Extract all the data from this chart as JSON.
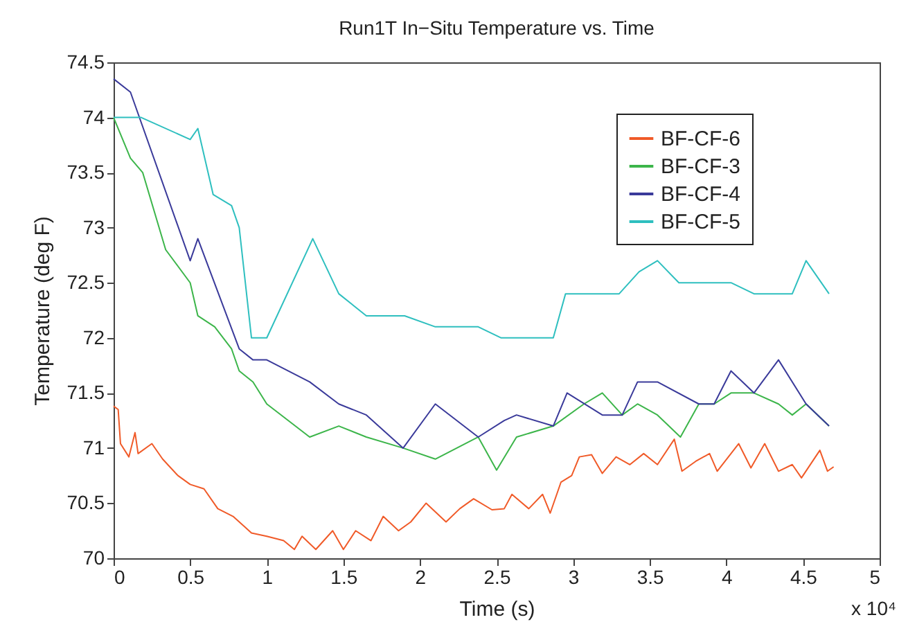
{
  "chart_data": {
    "type": "line",
    "title": "Run1T In−Situ Temperature vs. Time",
    "xlabel": "Time (s)",
    "ylabel": "Temperature (deg F)",
    "annotations": [
      "x 10⁴"
    ],
    "xlim": [
      0,
      5
    ],
    "xticks": [
      0,
      0.5,
      1,
      1.5,
      2,
      2.5,
      3,
      3.5,
      4,
      4.5,
      5
    ],
    "ylim": [
      70,
      74.5
    ],
    "yticks": [
      70,
      70.5,
      71,
      71.5,
      72,
      72.5,
      73,
      73.5,
      74,
      74.5
    ],
    "grid": false,
    "legend": "top right",
    "marker": "none",
    "line_style": "solid",
    "series": [
      {
        "name": "BF-CF-6",
        "color": "#f05a28",
        "x": [
          0,
          0.03,
          0.045,
          0.1,
          0.14,
          0.16,
          0.25,
          0.32,
          0.42,
          0.5,
          0.59,
          0.68,
          0.78,
          0.9,
          1.0,
          1.11,
          1.18,
          1.23,
          1.32,
          1.43,
          1.5,
          1.58,
          1.68,
          1.76,
          1.86,
          1.94,
          2.04,
          2.17,
          2.26,
          2.35,
          2.47,
          2.55,
          2.6,
          2.71,
          2.8,
          2.85,
          2.92,
          2.99,
          3.04,
          3.12,
          3.19,
          3.28,
          3.37,
          3.46,
          3.55,
          3.66,
          3.71,
          3.8,
          3.89,
          3.94,
          4.08,
          4.16,
          4.25,
          4.34,
          4.43,
          4.49,
          4.61,
          4.66,
          4.7
        ],
        "values": [
          71.38,
          71.35,
          71.04,
          70.92,
          71.14,
          70.95,
          71.04,
          70.9,
          70.75,
          70.67,
          70.63,
          70.45,
          70.38,
          70.23,
          70.2,
          70.16,
          70.08,
          70.2,
          70.08,
          70.25,
          70.08,
          70.25,
          70.16,
          70.38,
          70.25,
          70.33,
          70.5,
          70.33,
          70.45,
          70.54,
          70.44,
          70.45,
          70.58,
          70.45,
          70.58,
          70.41,
          70.69,
          70.75,
          70.92,
          70.94,
          70.77,
          70.92,
          70.85,
          70.95,
          70.85,
          71.08,
          70.79,
          70.88,
          70.95,
          70.79,
          71.04,
          70.82,
          71.04,
          70.79,
          70.85,
          70.73,
          70.98,
          70.79,
          70.83
        ]
      },
      {
        "name": "BF-CF-3",
        "color": "#3cb54a",
        "x": [
          0,
          0.11,
          0.19,
          0.34,
          0.5,
          0.55,
          0.66,
          0.77,
          0.82,
          0.91,
          1.0,
          1.28,
          1.47,
          1.65,
          1.89,
          2.1,
          2.38,
          2.5,
          2.63,
          2.87,
          3.07,
          3.19,
          3.32,
          3.42,
          3.55,
          3.7,
          3.82,
          3.92,
          4.03,
          4.18,
          4.34,
          4.43,
          4.52,
          4.67
        ],
        "values": [
          74.0,
          73.63,
          73.5,
          72.8,
          72.5,
          72.2,
          72.1,
          71.9,
          71.7,
          71.6,
          71.4,
          71.1,
          71.2,
          71.1,
          71.0,
          70.9,
          71.1,
          70.8,
          71.1,
          71.2,
          71.4,
          71.5,
          71.3,
          71.4,
          71.3,
          71.1,
          71.4,
          71.4,
          71.5,
          71.5,
          71.4,
          71.3,
          71.4,
          71.2
        ]
      },
      {
        "name": "BF-CF-4",
        "color": "#3a3a9a",
        "x": [
          0,
          0.11,
          0.5,
          0.55,
          0.82,
          0.91,
          1.0,
          1.28,
          1.47,
          1.65,
          1.89,
          2.1,
          2.38,
          2.55,
          2.63,
          2.87,
          2.96,
          3.19,
          3.32,
          3.42,
          3.55,
          3.82,
          3.92,
          4.03,
          4.18,
          4.34,
          4.52,
          4.67
        ],
        "values": [
          74.35,
          74.23,
          72.7,
          72.9,
          71.9,
          71.8,
          71.8,
          71.6,
          71.4,
          71.3,
          71.0,
          71.4,
          71.1,
          71.25,
          71.3,
          71.2,
          71.5,
          71.3,
          71.3,
          71.6,
          71.6,
          71.4,
          71.4,
          71.7,
          71.5,
          71.8,
          71.4,
          71.2
        ]
      },
      {
        "name": "BF-CF-5",
        "color": "#2ebfbf",
        "x": [
          0,
          0.18,
          0.5,
          0.55,
          0.65,
          0.77,
          0.82,
          0.9,
          1.0,
          1.3,
          1.47,
          1.65,
          1.9,
          2.1,
          2.38,
          2.53,
          2.87,
          2.95,
          3.3,
          3.43,
          3.55,
          3.69,
          4.03,
          4.18,
          4.43,
          4.52,
          4.67
        ],
        "values": [
          74.0,
          74.0,
          73.8,
          73.9,
          73.3,
          73.2,
          73.0,
          72.0,
          72.0,
          72.9,
          72.4,
          72.2,
          72.2,
          72.1,
          72.1,
          72.0,
          72.0,
          72.4,
          72.4,
          72.6,
          72.7,
          72.5,
          72.5,
          72.4,
          72.4,
          72.7,
          72.4
        ]
      }
    ]
  }
}
